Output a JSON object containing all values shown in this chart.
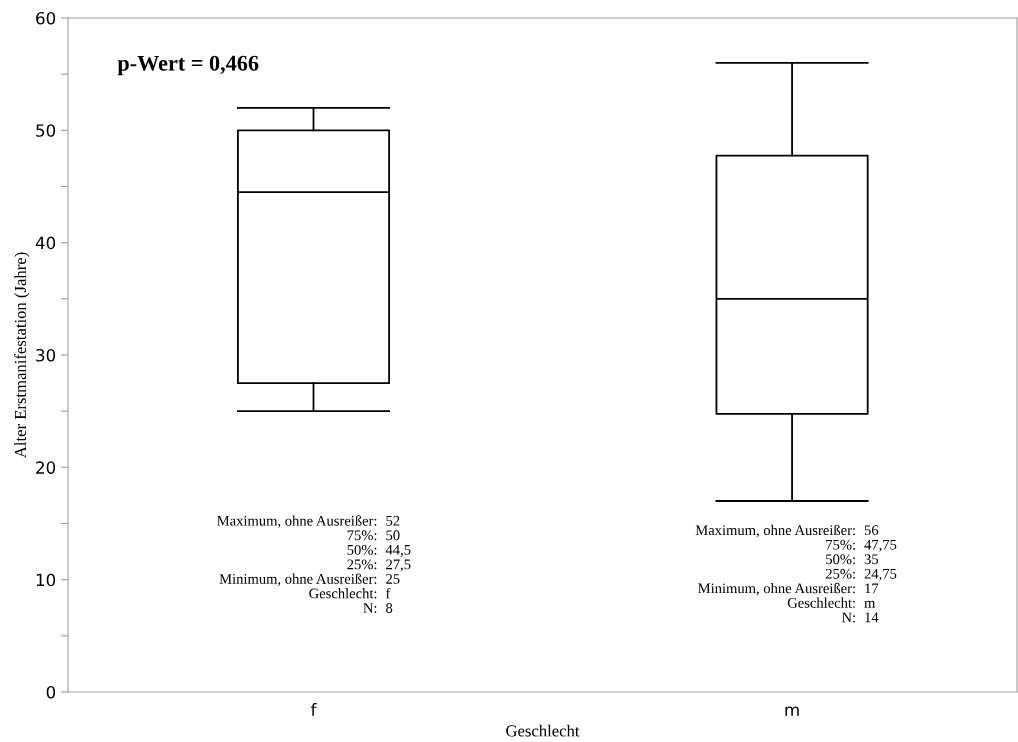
{
  "chart_data": {
    "type": "box",
    "xlabel": "Geschlecht",
    "ylabel": "Alter Erstmanifestation (Jahre)",
    "categories": [
      "f",
      "m"
    ],
    "boxes": [
      {
        "low": 25,
        "q1": 27.5,
        "median": 44.5,
        "q3": 50,
        "high": 52
      },
      {
        "low": 17,
        "q1": 24.75,
        "median": 35,
        "q3": 47.75,
        "high": 56
      }
    ],
    "color": "#000000",
    "ylim": [
      0,
      60
    ],
    "yticks": [
      0,
      {
        "value": 5,
        "label": null
      },
      10,
      {
        "value": 15,
        "label": null
      },
      20,
      {
        "value": 25,
        "label": null
      },
      30,
      {
        "value": 35,
        "label": null
      },
      40,
      {
        "value": 45,
        "label": null
      },
      50,
      {
        "value": 55,
        "label": null
      },
      60
    ],
    "grid": false,
    "annotations": [
      "p-Wert = 0,466",
      "Maximum, ohne Ausreißer:\n75%:\n50%:\n25%:\nMinimum, ohne Ausreißer:\nGeschlecht:\nN:",
      "52\n50\n44,5\n27,5\n25\nf\n8",
      "Maximum, ohne Ausreißer:\n75%:\n50%:\n25%:\nMinimum, ohne Ausreißer:\nGeschlecht:\nN:",
      "56\n47,75\n35\n24,75\n17\nm\n14"
    ],
    "legend": false
  }
}
